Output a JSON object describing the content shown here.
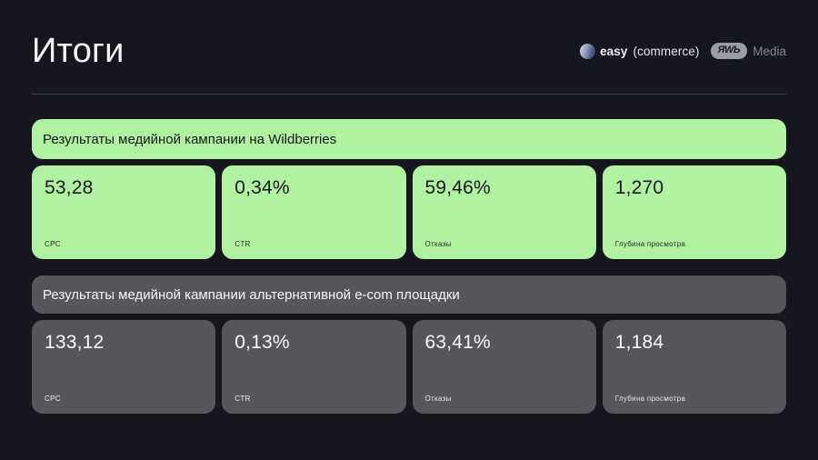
{
  "page": {
    "title": "Итоги",
    "background": "#15161e",
    "accent_green": "#b1f2a1",
    "card_gray": "#56575b"
  },
  "logos": {
    "easycommerce": {
      "bold": "easy",
      "light": "(commerce)"
    },
    "rwb": {
      "mark": "ЯWЬ",
      "label": "Media"
    }
  },
  "sections": [
    {
      "title": "Результаты медийной кампании на Wildberries",
      "style": "green",
      "cards": [
        {
          "value": "53,28",
          "label": "CPC"
        },
        {
          "value": "0,34%",
          "label": "CTR"
        },
        {
          "value": "59,46%",
          "label": "Отказы"
        },
        {
          "value": "1,270",
          "label": "Глубина просмотра"
        }
      ]
    },
    {
      "title": "Результаты медийной кампании альтернативной e-com площадки",
      "style": "gray",
      "cards": [
        {
          "value": "133,12",
          "label": "CPC"
        },
        {
          "value": "0,13%",
          "label": "CTR"
        },
        {
          "value": "63,41%",
          "label": "Отказы"
        },
        {
          "value": "1,184",
          "label": "Глубина просмотра"
        }
      ]
    }
  ]
}
